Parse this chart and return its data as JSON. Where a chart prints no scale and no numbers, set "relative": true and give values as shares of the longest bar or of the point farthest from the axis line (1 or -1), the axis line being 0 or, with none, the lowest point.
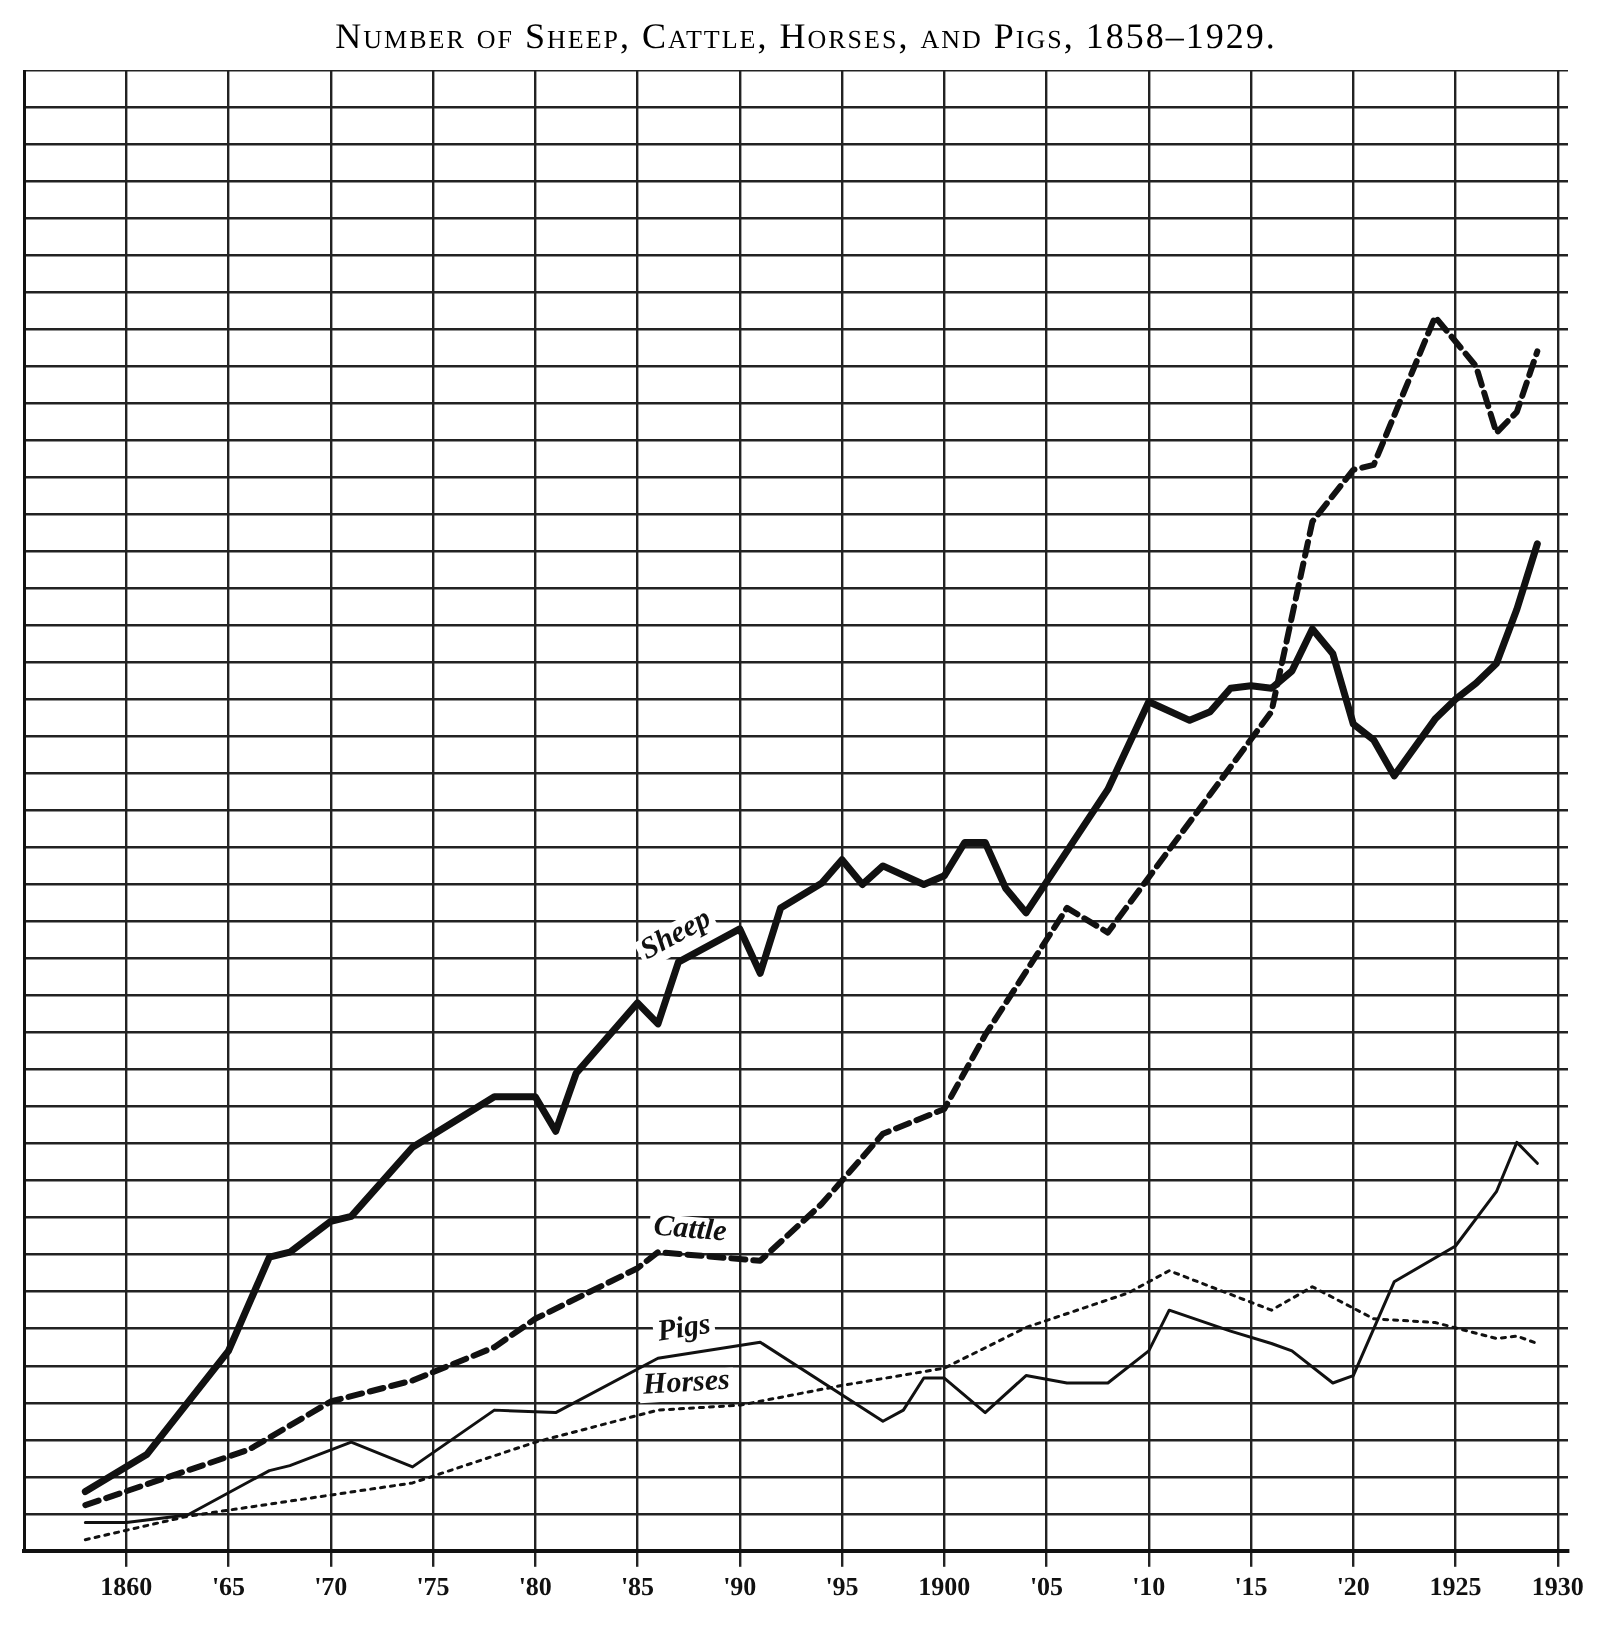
{
  "chart_data": {
    "type": "line",
    "title": "Number of Sheep, Cattle, Horses, and Pigs, 1858–1929.",
    "relative": true,
    "xlim": [
      1855,
      1930.5
    ],
    "xticks": [
      {
        "value": 1860,
        "label": "1860"
      },
      {
        "value": 1865,
        "label": "'65"
      },
      {
        "value": 1870,
        "label": "'70"
      },
      {
        "value": 1875,
        "label": "'75"
      },
      {
        "value": 1880,
        "label": "'80"
      },
      {
        "value": 1885,
        "label": "'85"
      },
      {
        "value": 1890,
        "label": "'90"
      },
      {
        "value": 1895,
        "label": "'95"
      },
      {
        "value": 1900,
        "label": "1900"
      },
      {
        "value": 1905,
        "label": "'05"
      },
      {
        "value": 1910,
        "label": "'10"
      },
      {
        "value": 1915,
        "label": "'15"
      },
      {
        "value": 1920,
        "label": "'20"
      },
      {
        "value": 1925,
        "label": "1925"
      },
      {
        "value": 1930,
        "label": "1930"
      }
    ],
    "tick_labels": "x",
    "grid": true,
    "legend": false,
    "marker": "none",
    "series": [
      {
        "name": "Sheep",
        "color": "#111111",
        "line_style": "solid",
        "x": [
          1858,
          1861,
          1865,
          1867,
          1868,
          1870,
          1871,
          1874,
          1878,
          1880,
          1881,
          1882,
          1885,
          1886,
          1887,
          1890,
          1891,
          1892,
          1894,
          1895,
          1896,
          1897,
          1899,
          1900,
          1901,
          1902,
          1903,
          1904,
          1908,
          1910,
          1912,
          1913,
          1914,
          1915,
          1916,
          1917,
          1918,
          1919,
          1920,
          1921,
          1922,
          1924,
          1925,
          1926,
          1927,
          1928,
          1929
        ],
        "values": [
          0.048,
          0.078,
          0.162,
          0.238,
          0.242,
          0.267,
          0.271,
          0.327,
          0.368,
          0.368,
          0.34,
          0.387,
          0.444,
          0.427,
          0.477,
          0.504,
          0.468,
          0.521,
          0.541,
          0.56,
          0.54,
          0.555,
          0.54,
          0.547,
          0.574,
          0.574,
          0.537,
          0.517,
          0.617,
          0.688,
          0.673,
          0.68,
          0.699,
          0.701,
          0.699,
          0.713,
          0.747,
          0.727,
          0.67,
          0.657,
          0.628,
          0.674,
          0.69,
          0.703,
          0.719,
          0.763,
          0.816
        ]
      },
      {
        "name": "Cattle",
        "color": "#111111",
        "line_style": "dashed",
        "x": [
          1858,
          1866,
          1870,
          1874,
          1878,
          1880,
          1885,
          1886,
          1891,
          1894,
          1897,
          1900,
          1902,
          1906,
          1908,
          1916,
          1918,
          1920,
          1921,
          1924,
          1926,
          1927,
          1928,
          1929
        ],
        "values": [
          0.037,
          0.082,
          0.121,
          0.138,
          0.165,
          0.188,
          0.229,
          0.242,
          0.235,
          0.281,
          0.338,
          0.358,
          0.418,
          0.521,
          0.501,
          0.68,
          0.834,
          0.876,
          0.88,
          1,
          0.96,
          0.906,
          0.923,
          0.972
        ]
      },
      {
        "name": "Pigs",
        "color": "#111111",
        "line_style": "solid",
        "x": [
          1858,
          1860,
          1863,
          1867,
          1868,
          1871,
          1874,
          1878,
          1881,
          1886,
          1891,
          1897,
          1898,
          1899,
          1900,
          1902,
          1904,
          1906,
          1908,
          1910,
          1911,
          1914,
          1916,
          1917,
          1919,
          1920,
          1922,
          1925,
          1927,
          1928,
          1929
        ],
        "values": [
          0.023,
          0.023,
          0.029,
          0.065,
          0.069,
          0.088,
          0.068,
          0.114,
          0.112,
          0.156,
          0.169,
          0.105,
          0.114,
          0.14,
          0.14,
          0.112,
          0.142,
          0.136,
          0.136,
          0.162,
          0.195,
          0.178,
          0.168,
          0.162,
          0.136,
          0.142,
          0.218,
          0.247,
          0.291,
          0.331,
          0.314
        ]
      },
      {
        "name": "Horses",
        "color": "#111111",
        "line_style": "dotted",
        "x": [
          1858,
          1863,
          1874,
          1880,
          1886,
          1890,
          1895,
          1900,
          1904,
          1909,
          1911,
          1916,
          1918,
          1921,
          1924,
          1927,
          1928,
          1929
        ],
        "values": [
          0.009,
          0.028,
          0.055,
          0.088,
          0.114,
          0.118,
          0.134,
          0.148,
          0.181,
          0.209,
          0.227,
          0.195,
          0.214,
          0.188,
          0.185,
          0.172,
          0.174,
          0.168
        ]
      }
    ]
  }
}
